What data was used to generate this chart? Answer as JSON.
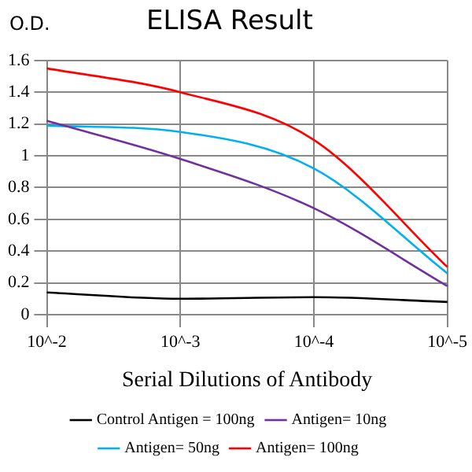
{
  "chart_data": {
    "type": "line",
    "title": "ELISA Result",
    "ylabel": "O.D.",
    "xlabel": "Serial Dilutions of Antibody",
    "categories": [
      "10^-2",
      "10^-3",
      "10^-4",
      "10^-5"
    ],
    "series": [
      {
        "name": "Control Antigen = 100ng",
        "color": "#000000",
        "values": [
          0.14,
          0.1,
          0.11,
          0.08
        ]
      },
      {
        "name": "Antigen= 10ng",
        "color": "#7030a0",
        "values": [
          1.22,
          0.98,
          0.67,
          0.18
        ]
      },
      {
        "name": "Antigen= 50ng",
        "color": "#00b0f0",
        "values": [
          1.19,
          1.15,
          0.92,
          0.26
        ]
      },
      {
        "name": "Antigen= 100ng",
        "color": "#ff0000",
        "values": [
          1.55,
          1.4,
          1.1,
          0.3
        ]
      }
    ],
    "ylim": [
      0,
      1.6
    ],
    "yticks": [
      0,
      0.2,
      0.4,
      0.6,
      0.8,
      1,
      1.2,
      1.4,
      1.6
    ],
    "grid": true,
    "legend": "bottom",
    "marker": "none",
    "line_style": "solid"
  }
}
